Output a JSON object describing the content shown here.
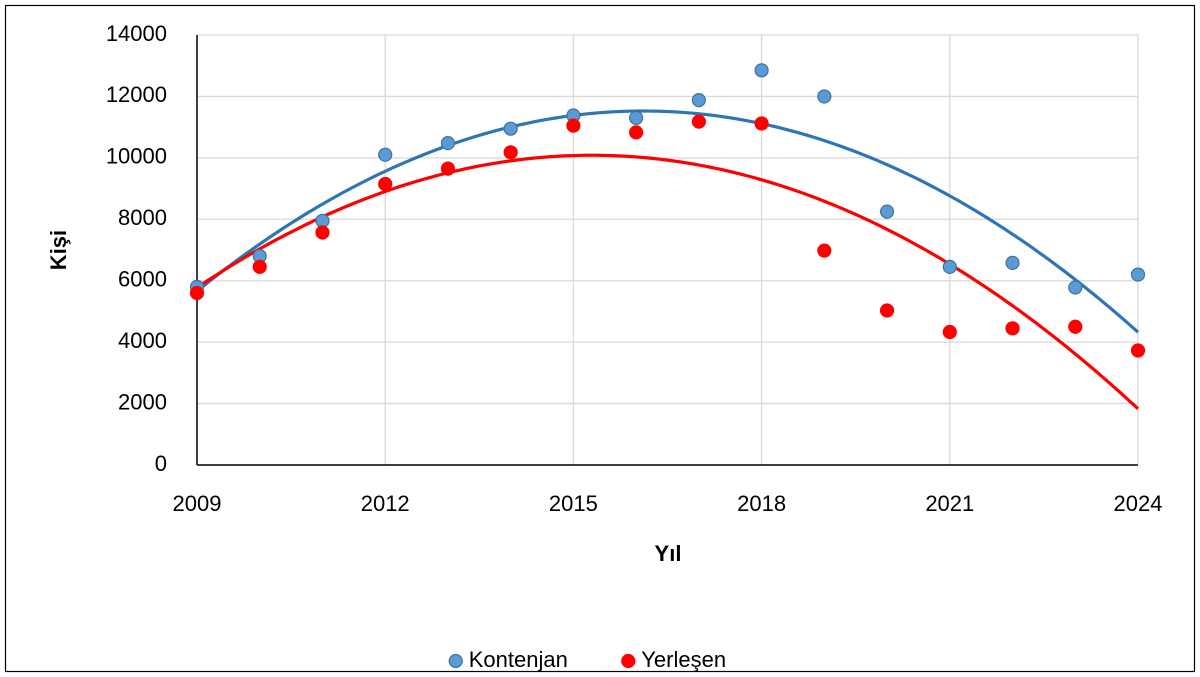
{
  "chart_data": {
    "type": "scatter",
    "x_label": "Yıl",
    "y_label": "Kişi",
    "x": [
      2009,
      2010,
      2011,
      2012,
      2013,
      2014,
      2015,
      2016,
      2017,
      2018,
      2019,
      2020,
      2021,
      2022,
      2023,
      2024
    ],
    "series": [
      {
        "name": "Kontenjan",
        "color": "#5b9bd5",
        "edge_color": "#41719c",
        "trend_color": "#2e75b6",
        "trendline_order": 2,
        "values": [
          5800,
          6800,
          7950,
          10100,
          10480,
          10950,
          11380,
          11300,
          11880,
          12850,
          12000,
          8250,
          6450,
          6580,
          5780,
          6200
        ]
      },
      {
        "name": "Yerleşen",
        "color": "#ff0000",
        "edge_color": "#ff0000",
        "trend_color": "#ff0000",
        "trendline_order": 2,
        "values": [
          5600,
          6450,
          7570,
          9150,
          9650,
          10180,
          11050,
          10830,
          11180,
          11120,
          6980,
          5030,
          4330,
          4450,
          4500,
          3730
        ]
      }
    ],
    "xlim": [
      2009,
      2024
    ],
    "xticks": [
      2009,
      2012,
      2015,
      2018,
      2021,
      2024
    ],
    "ylim": [
      0,
      14000
    ],
    "yticks": [
      0,
      2000,
      4000,
      6000,
      8000,
      10000,
      12000,
      14000
    ],
    "grid": true,
    "legend": "bottom"
  }
}
